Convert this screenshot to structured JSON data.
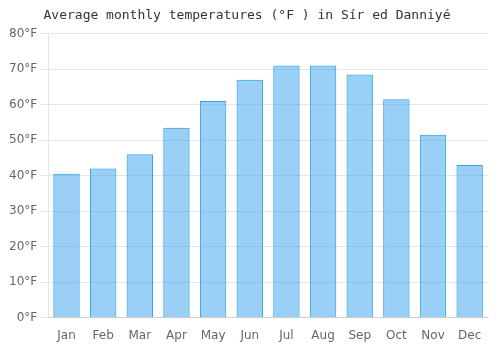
{
  "chart_data": {
    "type": "bar",
    "title": "Average monthly temperatures (°F ) in Sír ed Danniyé",
    "categories": [
      "Jan",
      "Feb",
      "Mar",
      "Apr",
      "May",
      "Jun",
      "Jul",
      "Aug",
      "Sep",
      "Oct",
      "Nov",
      "Dec"
    ],
    "values": [
      40.5,
      42.0,
      46.0,
      53.5,
      61.0,
      67.0,
      71.0,
      71.0,
      68.5,
      61.5,
      51.5,
      43.0
    ],
    "ylim": [
      0,
      80
    ],
    "yticks": [
      {
        "value": 0,
        "label": "0°F"
      },
      {
        "value": 10,
        "label": "10°F"
      },
      {
        "value": 20,
        "label": "20°F"
      },
      {
        "value": 30,
        "label": "30°F"
      },
      {
        "value": 40,
        "label": "40°F"
      },
      {
        "value": 50,
        "label": "50°F"
      },
      {
        "value": 60,
        "label": "60°F"
      },
      {
        "value": 70,
        "label": "70°F"
      },
      {
        "value": 80,
        "label": "80°F"
      }
    ],
    "grid": true
  }
}
